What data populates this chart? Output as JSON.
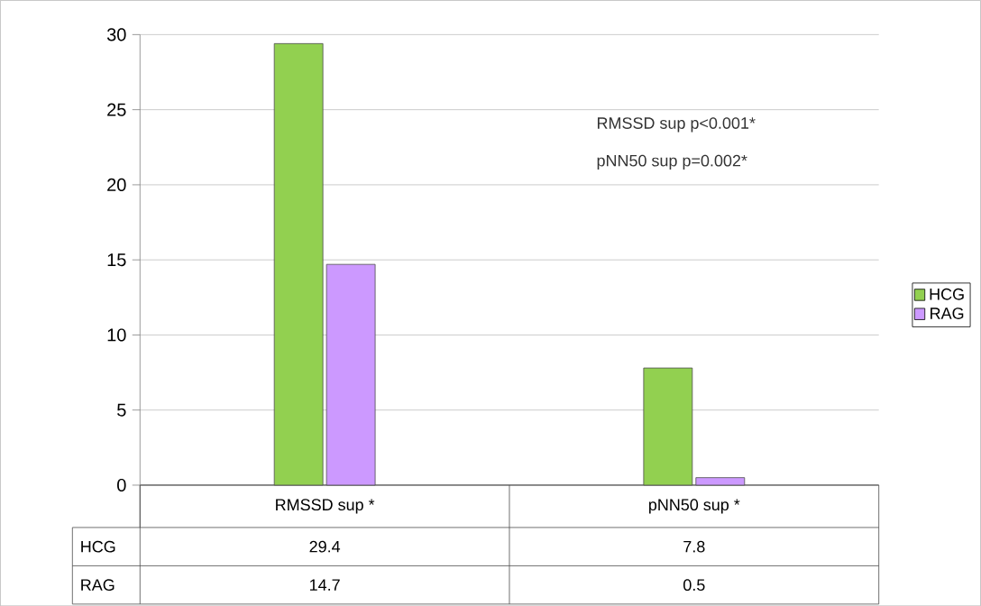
{
  "chart_data": {
    "type": "bar",
    "categories": [
      "RMSSD sup *",
      "pNN50 sup *"
    ],
    "series": [
      {
        "name": "HCG",
        "color": "#92d050",
        "values": [
          29.4,
          7.8
        ]
      },
      {
        "name": "RAG",
        "color": "#cc99ff",
        "values": [
          14.7,
          0.5
        ]
      }
    ],
    "ylim": [
      0,
      30
    ],
    "yticks": [
      0,
      5,
      10,
      15,
      20,
      25,
      30
    ],
    "grid": "y",
    "legend": "right",
    "data_labels": true,
    "annotations": [
      "RMSSD sup p<0.001*",
      "pNN50 sup p=0.002*"
    ]
  }
}
